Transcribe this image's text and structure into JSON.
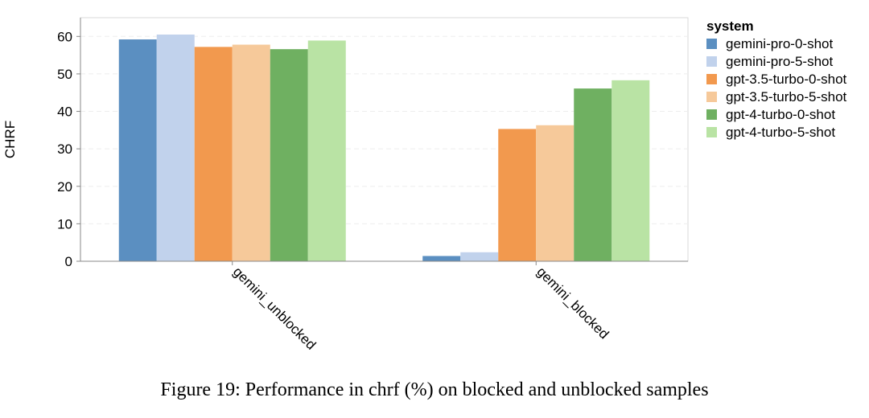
{
  "caption": "Figure 19: Performance in chrf (%) on blocked and unblocked samples",
  "chart_data": {
    "type": "bar",
    "ylabel": "CHRF",
    "xlabel": "",
    "ylim": [
      0,
      65
    ],
    "yticks": [
      0,
      10,
      20,
      30,
      40,
      50,
      60
    ],
    "grid": true,
    "legend_title": "system",
    "legend_position": "right",
    "categories": [
      "gemini_unblocked",
      "gemini_blocked"
    ],
    "series": [
      {
        "name": "gemini-pro-0-shot",
        "color": "#5b8fc1",
        "values": [
          59.2,
          1.4
        ]
      },
      {
        "name": "gemini-pro-5-shot",
        "color": "#c1d2ec",
        "values": [
          60.5,
          2.4
        ]
      },
      {
        "name": "gpt-3.5-turbo-0-shot",
        "color": "#f2994e",
        "values": [
          57.2,
          35.3
        ]
      },
      {
        "name": "gpt-3.5-turbo-5-shot",
        "color": "#f6c99a",
        "values": [
          57.8,
          36.3
        ]
      },
      {
        "name": "gpt-4-turbo-0-shot",
        "color": "#6fb061",
        "values": [
          56.6,
          46.1
        ]
      },
      {
        "name": "gpt-4-turbo-5-shot",
        "color": "#b9e3a4",
        "values": [
          58.9,
          48.3
        ]
      }
    ]
  }
}
